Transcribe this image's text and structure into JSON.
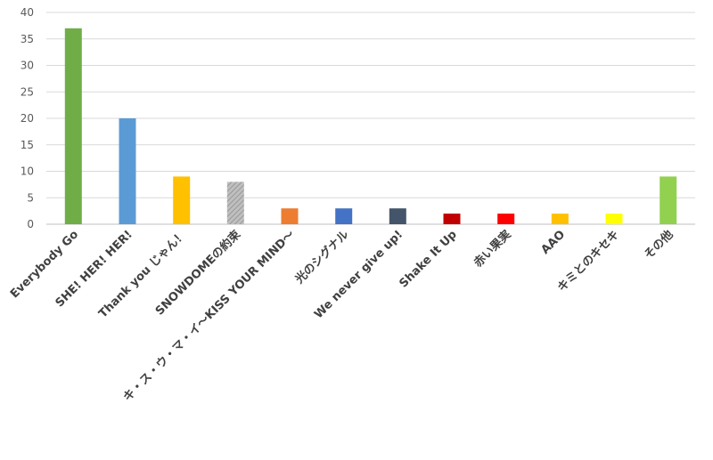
{
  "chart_data": {
    "type": "bar",
    "title": "",
    "xlabel": "",
    "ylabel": "",
    "ylim": [
      0,
      40
    ],
    "yticks": [
      0,
      5,
      10,
      15,
      20,
      25,
      30,
      35,
      40
    ],
    "grid": true,
    "legend": "none",
    "categories": [
      "Everybody Go",
      "SHE! HER! HER!",
      "Thank you じゃん！",
      "SNOWDOMEの約束",
      "キ・ス・ウ・マ・イ～KISS YOUR MIND～",
      "光のシグナル",
      "We never give up!",
      "Shake It Up",
      "赤い果実",
      "AAO",
      "キミとのキセキ",
      "その他"
    ],
    "values": [
      37,
      20,
      9,
      8,
      3,
      3,
      3,
      2,
      2,
      2,
      2,
      9
    ],
    "colors": [
      "#70ad47",
      "#5b9bd5",
      "#ffc000",
      "#a5a5a5",
      "#ed7d31",
      "#4472c4",
      "#44546a",
      "#c00000",
      "#ff0000",
      "#ffc000",
      "#ffff00",
      "#92d050"
    ],
    "patterned": [
      false,
      false,
      false,
      true,
      false,
      false,
      false,
      false,
      false,
      false,
      false,
      false
    ]
  }
}
